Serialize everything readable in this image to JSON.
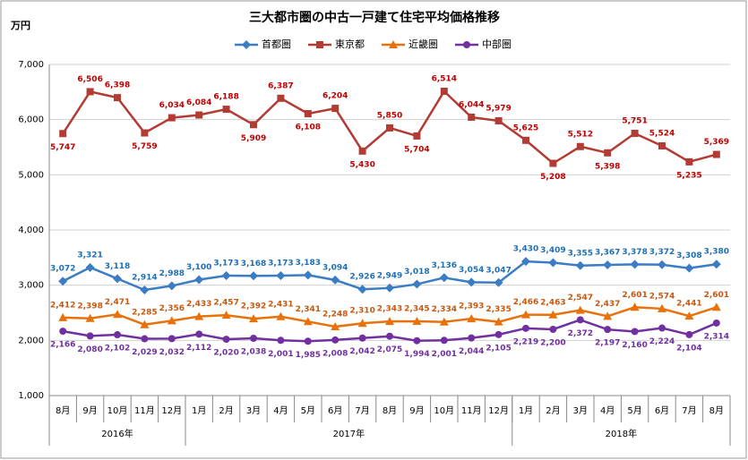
{
  "chart_data": {
    "type": "line",
    "title": "三大都市圏の中古一戸建て住宅平均価格推移",
    "y_unit": "万円",
    "categories": [
      "8月",
      "9月",
      "10月",
      "11月",
      "12月",
      "1月",
      "2月",
      "3月",
      "4月",
      "5月",
      "6月",
      "7月",
      "8月",
      "9月",
      "10月",
      "11月",
      "12月",
      "1月",
      "2月",
      "3月",
      "4月",
      "5月",
      "6月",
      "7月",
      "8月"
    ],
    "groups": [
      {
        "label": "2016年",
        "count": 5
      },
      {
        "label": "2017年",
        "count": 12
      },
      {
        "label": "2018年",
        "count": 8
      }
    ],
    "ylim": [
      1000,
      7000
    ],
    "yticks": [
      {
        "value": 1000,
        "label": "1,000"
      },
      {
        "value": 2000,
        "label": "2,000"
      },
      {
        "value": 3000,
        "label": "3,000"
      },
      {
        "value": 4000,
        "label": "4,000"
      },
      {
        "value": 5000,
        "label": "5,000"
      },
      {
        "value": 6000,
        "label": "6,000"
      },
      {
        "value": 7000,
        "label": "7,000"
      }
    ],
    "grid": true,
    "legend": "top",
    "series": [
      {
        "name": "首都圏",
        "color": "#3b7dc4",
        "label_color": "#1f6fb5",
        "marker": "diamond",
        "values": [
          3072,
          3321,
          3118,
          2914,
          2988,
          3100,
          3173,
          3168,
          3173,
          3183,
          3094,
          2926,
          2949,
          3018,
          3136,
          3054,
          3047,
          3430,
          3409,
          3355,
          3367,
          3378,
          3372,
          3308,
          3380
        ],
        "value_labels": [
          "3,072",
          "3,321",
          "3,118",
          "2,914",
          "2,988",
          "3,100",
          "3,173",
          "3,168",
          "3,173",
          "3,183",
          "3,094",
          "2,926",
          "2,949",
          "3,018",
          "3,136",
          "3,054",
          "3,047",
          "3,430",
          "3,409",
          "3,355",
          "3,367",
          "3,378",
          "3,372",
          "3,308",
          "3,380"
        ]
      },
      {
        "name": "東京都",
        "color": "#b23b34",
        "label_color": "#c00000",
        "marker": "square",
        "values": [
          5747,
          6506,
          6398,
          5759,
          6034,
          6084,
          6188,
          5909,
          6387,
          6108,
          6204,
          5430,
          5850,
          5704,
          6514,
          6044,
          5979,
          5625,
          5208,
          5512,
          5398,
          5751,
          5524,
          5235,
          5369
        ],
        "value_labels": [
          "5,747",
          "6,506",
          "6,398",
          "5,759",
          "6,034",
          "6,084",
          "6,188",
          "5,909",
          "6,387",
          "6,108",
          "6,204",
          "5,430",
          "5,850",
          "5,704",
          "6,514",
          "6,044",
          "5,979",
          "5,625",
          "5,208",
          "5,512",
          "5,398",
          "5,751",
          "5,524",
          "5,235",
          "5,369"
        ]
      },
      {
        "name": "近畿圏",
        "color": "#e8710a",
        "label_color": "#c65911",
        "marker": "triangle",
        "values": [
          2412,
          2398,
          2471,
          2285,
          2356,
          2433,
          2457,
          2392,
          2431,
          2341,
          2248,
          2310,
          2343,
          2345,
          2334,
          2393,
          2335,
          2466,
          2463,
          2547,
          2437,
          2601,
          2574,
          2441,
          2601
        ],
        "value_labels": [
          "2,412",
          "2,398",
          "2,471",
          "2,285",
          "2,356",
          "2,433",
          "2,457",
          "2,392",
          "2,431",
          "2,341",
          "2,248",
          "2,310",
          "2,343",
          "2,345",
          "2,334",
          "2,393",
          "2,335",
          "2,466",
          "2,463",
          "2,547",
          "2,437",
          "2,601",
          "2,574",
          "2,441",
          "2,601"
        ]
      },
      {
        "name": "中部圏",
        "color": "#7030a0",
        "label_color": "#7030a0",
        "marker": "circle",
        "values": [
          2166,
          2080,
          2102,
          2029,
          2032,
          2112,
          2020,
          2038,
          2001,
          1985,
          2008,
          2042,
          2075,
          1994,
          2001,
          2044,
          2105,
          2219,
          2200,
          2372,
          2197,
          2160,
          2224,
          2104,
          2314
        ],
        "value_labels": [
          "2,166",
          "2,080",
          "2,102",
          "2,029",
          "2,032",
          "2,112",
          "2,020",
          "2,038",
          "2,001",
          "1,985",
          "2,008",
          "2,042",
          "2,075",
          "1,994",
          "2,001",
          "2,044",
          "2,105",
          "2,219",
          "2,200",
          "2,372",
          "2,197",
          "2,160",
          "2,224",
          "2,104",
          "2,314"
        ]
      }
    ]
  }
}
